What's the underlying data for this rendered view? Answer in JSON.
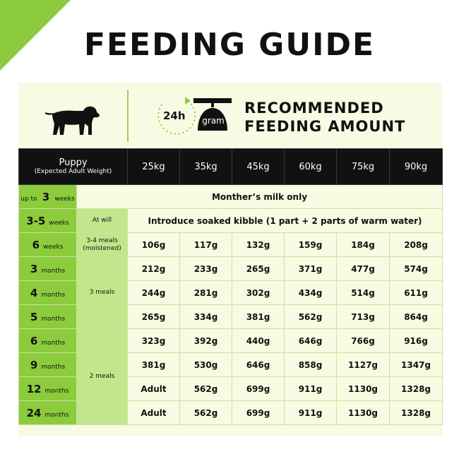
{
  "title": "FEEDING GUIDE",
  "header": {
    "clock_label": "24h",
    "scale_label": "gram",
    "recommended_line1": "RECOMMENDED",
    "recommended_line2": "FEEDING AMOUNT"
  },
  "columns": {
    "puppy": "Puppy",
    "puppy_sub": "(Expected Adult Weight)",
    "weights": [
      "25kg",
      "35kg",
      "45kg",
      "60kg",
      "75kg",
      "90kg"
    ]
  },
  "rows": [
    {
      "age_num": "up to",
      "age_big": "3",
      "age_unit": "weeks",
      "note": "Monther’s milk only"
    },
    {
      "age_num": "3-5",
      "age_unit": "weeks",
      "meal": "At will",
      "note": "Introduce soaked kibble (1 part + 2 parts of warm water)"
    },
    {
      "age_num": "6",
      "age_unit": "weeks",
      "meal": "3-4 meals (moistened)",
      "values": [
        "106g",
        "117g",
        "132g",
        "159g",
        "184g",
        "208g"
      ]
    },
    {
      "age_num": "3",
      "age_unit": "months",
      "values": [
        "212g",
        "233g",
        "265g",
        "371g",
        "477g",
        "574g"
      ]
    },
    {
      "age_num": "4",
      "age_unit": "months",
      "values": [
        "244g",
        "281g",
        "302g",
        "434g",
        "514g",
        "611g"
      ]
    },
    {
      "age_num": "5",
      "age_unit": "months",
      "values": [
        "265g",
        "334g",
        "381g",
        "562g",
        "713g",
        "864g"
      ]
    },
    {
      "age_num": "6",
      "age_unit": "months",
      "values": [
        "323g",
        "392g",
        "440g",
        "646g",
        "766g",
        "916g"
      ]
    },
    {
      "age_num": "9",
      "age_unit": "months",
      "values": [
        "381g",
        "530g",
        "646g",
        "858g",
        "1127g",
        "1347g"
      ]
    },
    {
      "age_num": "12",
      "age_unit": "months",
      "values": [
        "Adult",
        "562g",
        "699g",
        "911g",
        "1130g",
        "1328g"
      ]
    },
    {
      "age_num": "24",
      "age_unit": "months",
      "values": [
        "Adult",
        "562g",
        "699g",
        "911g",
        "1130g",
        "1328g"
      ]
    }
  ],
  "meal_groups": {
    "three_meals": "3 meals",
    "two_meals": "2 meals"
  },
  "colors": {
    "accent_green": "#8ccc3c",
    "light_green": "#c2e68c",
    "panel_bg": "#f7fbe2",
    "header_black": "#111111"
  }
}
